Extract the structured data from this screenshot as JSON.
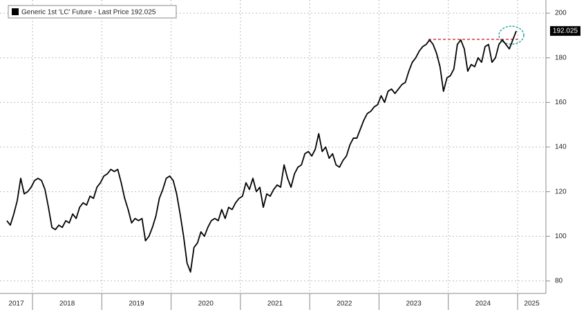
{
  "chart_data": {
    "type": "line",
    "x": [
      2017.63,
      2017.68,
      2017.73,
      2017.78,
      2017.83,
      2017.88,
      2017.93,
      2017.98,
      2018.03,
      2018.08,
      2018.13,
      2018.18,
      2018.23,
      2018.28,
      2018.33,
      2018.38,
      2018.43,
      2018.48,
      2018.53,
      2018.58,
      2018.63,
      2018.68,
      2018.73,
      2018.78,
      2018.83,
      2018.88,
      2018.93,
      2018.98,
      2019.03,
      2019.08,
      2019.13,
      2019.18,
      2019.23,
      2019.28,
      2019.33,
      2019.38,
      2019.43,
      2019.48,
      2019.53,
      2019.58,
      2019.63,
      2019.68,
      2019.73,
      2019.78,
      2019.83,
      2019.88,
      2019.93,
      2019.98,
      2020.03,
      2020.08,
      2020.13,
      2020.18,
      2020.23,
      2020.28,
      2020.33,
      2020.38,
      2020.43,
      2020.48,
      2020.53,
      2020.58,
      2020.63,
      2020.68,
      2020.73,
      2020.78,
      2020.83,
      2020.88,
      2020.93,
      2020.98,
      2021.03,
      2021.08,
      2021.13,
      2021.18,
      2021.23,
      2021.28,
      2021.33,
      2021.38,
      2021.43,
      2021.48,
      2021.53,
      2021.58,
      2021.63,
      2021.68,
      2021.73,
      2021.78,
      2021.83,
      2021.88,
      2021.93,
      2021.98,
      2022.03,
      2022.08,
      2022.13,
      2022.18,
      2022.23,
      2022.28,
      2022.33,
      2022.38,
      2022.43,
      2022.48,
      2022.53,
      2022.58,
      2022.63,
      2022.68,
      2022.73,
      2022.78,
      2022.83,
      2022.88,
      2022.93,
      2022.98,
      2023.03,
      2023.08,
      2023.13,
      2023.18,
      2023.23,
      2023.28,
      2023.33,
      2023.38,
      2023.43,
      2023.48,
      2023.53,
      2023.58,
      2023.63,
      2023.68,
      2023.73,
      2023.78,
      2023.83,
      2023.88,
      2023.93,
      2023.98,
      2024.03,
      2024.08,
      2024.13,
      2024.18,
      2024.23,
      2024.28,
      2024.33,
      2024.38,
      2024.43,
      2024.48,
      2024.53,
      2024.58,
      2024.63,
      2024.68,
      2024.73,
      2024.78,
      2024.83,
      2024.88,
      2024.93,
      2024.98
    ],
    "series": [
      {
        "name": "Generic 1st 'LC' Future - Last Price",
        "color": "#000000",
        "values": [
          107,
          105,
          110,
          116,
          126,
          119,
          120,
          122,
          125,
          126,
          125,
          121,
          113,
          104,
          103,
          105,
          104,
          107,
          106,
          110,
          108,
          113,
          115,
          114,
          118,
          117,
          122,
          124,
          127,
          128,
          130,
          129,
          130,
          124,
          117,
          112,
          106,
          108,
          107,
          108,
          98,
          100,
          104,
          109,
          117,
          121,
          126,
          127,
          125,
          119,
          110,
          100,
          88,
          84,
          95,
          97,
          102,
          100,
          104,
          107,
          108,
          107,
          112,
          108,
          113,
          112,
          115,
          117,
          118,
          124,
          121,
          126,
          120,
          122,
          113,
          119,
          118,
          121,
          123,
          122,
          132,
          126,
          122,
          128,
          131,
          132,
          137,
          138,
          136,
          139,
          146,
          138,
          140,
          135,
          137,
          132,
          131,
          134,
          136,
          141,
          144,
          144,
          148,
          152,
          155,
          156,
          158,
          159,
          163,
          160,
          165,
          166,
          164,
          166,
          168,
          169,
          174,
          178,
          180,
          183,
          185,
          186,
          188,
          186,
          182,
          176,
          165,
          171,
          172,
          175,
          186,
          188,
          184,
          174,
          177,
          176,
          180,
          178,
          185,
          186,
          178,
          180,
          186,
          188,
          186,
          184,
          188,
          192.025
        ]
      }
    ],
    "xlim": [
      2017.531,
      2025.408
    ],
    "xticks": [
      2017,
      2018,
      2019,
      2020,
      2021,
      2022,
      2023,
      2024,
      2025
    ],
    "ylim": [
      74.4,
      205.9
    ],
    "yticks": [
      80,
      100,
      120,
      140,
      160,
      180,
      200
    ],
    "grid": true
  }
}
